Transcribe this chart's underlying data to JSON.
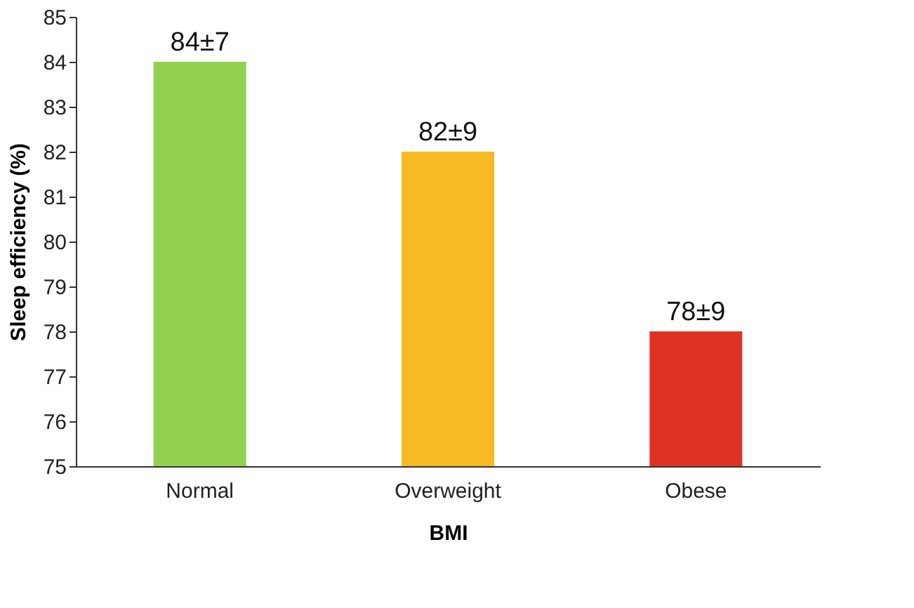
{
  "chart_data": {
    "type": "bar",
    "xlabel": "BMI",
    "ylabel": "Sleep efficiency (%)",
    "categories": [
      "Normal",
      "Overweight",
      "Obese"
    ],
    "values": [
      84,
      82,
      78
    ],
    "colors": [
      "#92d050",
      "#f6bb22",
      "#e03224"
    ],
    "value_labels": [
      "84±7",
      "82±9",
      "78±9"
    ],
    "ylim": [
      75,
      85
    ],
    "yticks": [
      75,
      76,
      77,
      78,
      79,
      80,
      81,
      82,
      83,
      84,
      85
    ],
    "grid": false
  }
}
